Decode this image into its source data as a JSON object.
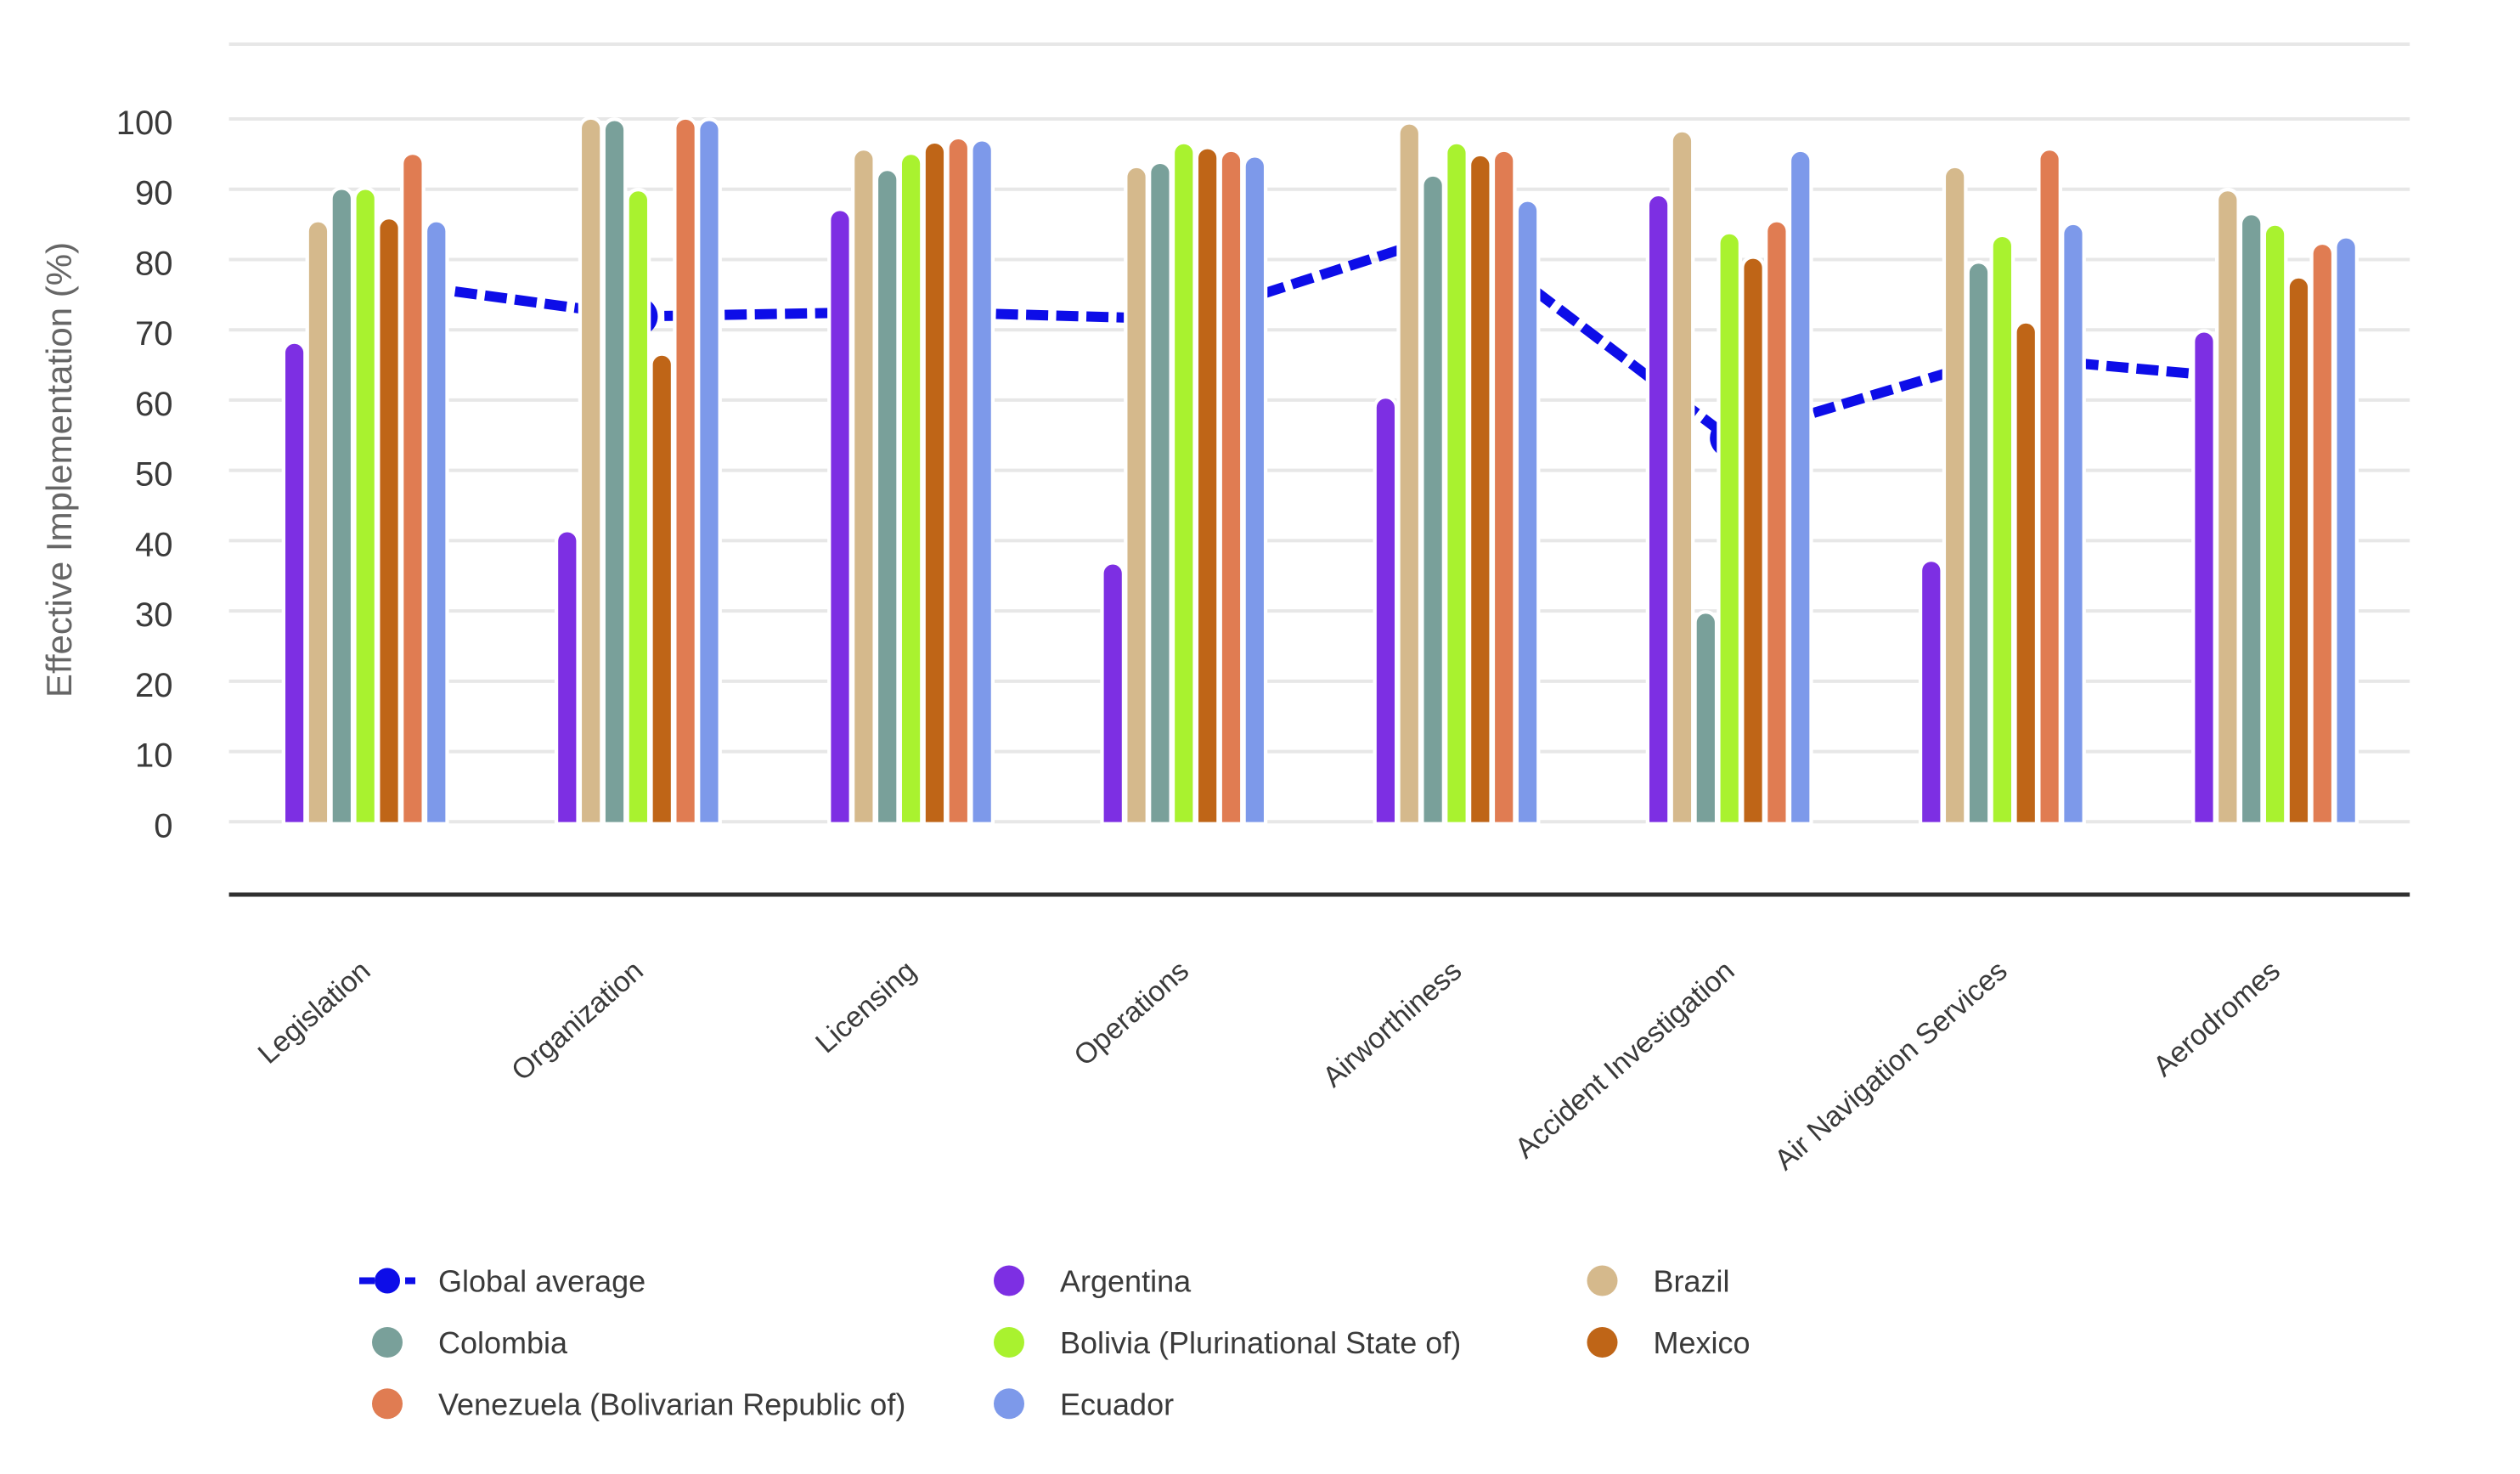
{
  "chart_data": {
    "type": "bar",
    "categories": [
      "Legislation",
      "Organization",
      "Licensing",
      "Operations",
      "Airworthiness",
      "Accident Investigation",
      "Air Navigation Services",
      "Aerodromes"
    ],
    "series": [
      {
        "name": "Global average",
        "type": "line",
        "dashed": true,
        "color": "#0D0DE8",
        "values": [
          77.2,
          71.9,
          72.6,
          71.5,
          84.0,
          54.6,
          66.2,
          62.7
        ]
      },
      {
        "name": "Argentina",
        "type": "bar",
        "color": "#7D2FE3",
        "values": [
          68.0,
          41.2,
          86.9,
          36.6,
          60.2,
          89.0,
          37.0,
          69.6
        ]
      },
      {
        "name": "Brazil",
        "type": "bar",
        "color": "#D5B98C",
        "values": [
          85.3,
          99.9,
          95.5,
          93.0,
          99.2,
          98.1,
          93.0,
          89.7
        ]
      },
      {
        "name": "Colombia",
        "type": "bar",
        "color": "#79A09A",
        "values": [
          89.9,
          99.7,
          92.6,
          93.6,
          91.8,
          29.6,
          79.4,
          86.3
        ]
      },
      {
        "name": "Bolivia (Plurinational State of)",
        "type": "bar",
        "color": "#A9F22F",
        "values": [
          89.9,
          89.7,
          94.9,
          96.4,
          96.4,
          83.6,
          83.2,
          84.8
        ]
      },
      {
        "name": "Mexico",
        "type": "bar",
        "color": "#BF6517",
        "values": [
          85.7,
          66.3,
          96.5,
          95.7,
          94.7,
          80.1,
          70.9,
          77.3
        ]
      },
      {
        "name": "Venezuela (Bolivarian Republic of)",
        "type": "bar",
        "color": "#E07C52",
        "values": [
          94.9,
          99.9,
          97.1,
          95.3,
          95.3,
          85.3,
          95.5,
          82.1
        ]
      },
      {
        "name": "Ecuador",
        "type": "bar",
        "color": "#7D99EA",
        "values": [
          85.3,
          99.7,
          96.8,
          94.5,
          88.2,
          95.3,
          84.9,
          83.0
        ]
      }
    ],
    "ylabel": "Effective Implementation (%)",
    "yticks": [
      0,
      10,
      20,
      30,
      40,
      50,
      60,
      70,
      80,
      90,
      100
    ],
    "ylim": [
      -10,
      110
    ],
    "grid": "horizontal",
    "legend_position": "bottom"
  },
  "colors": {
    "background": "#FFFFFF",
    "gridline": "#E7E7E7",
    "axis_border": "#303030",
    "tick_label": "#3A3A3A",
    "axis_title": "#666666",
    "legend_label": "#3A3A3A"
  }
}
